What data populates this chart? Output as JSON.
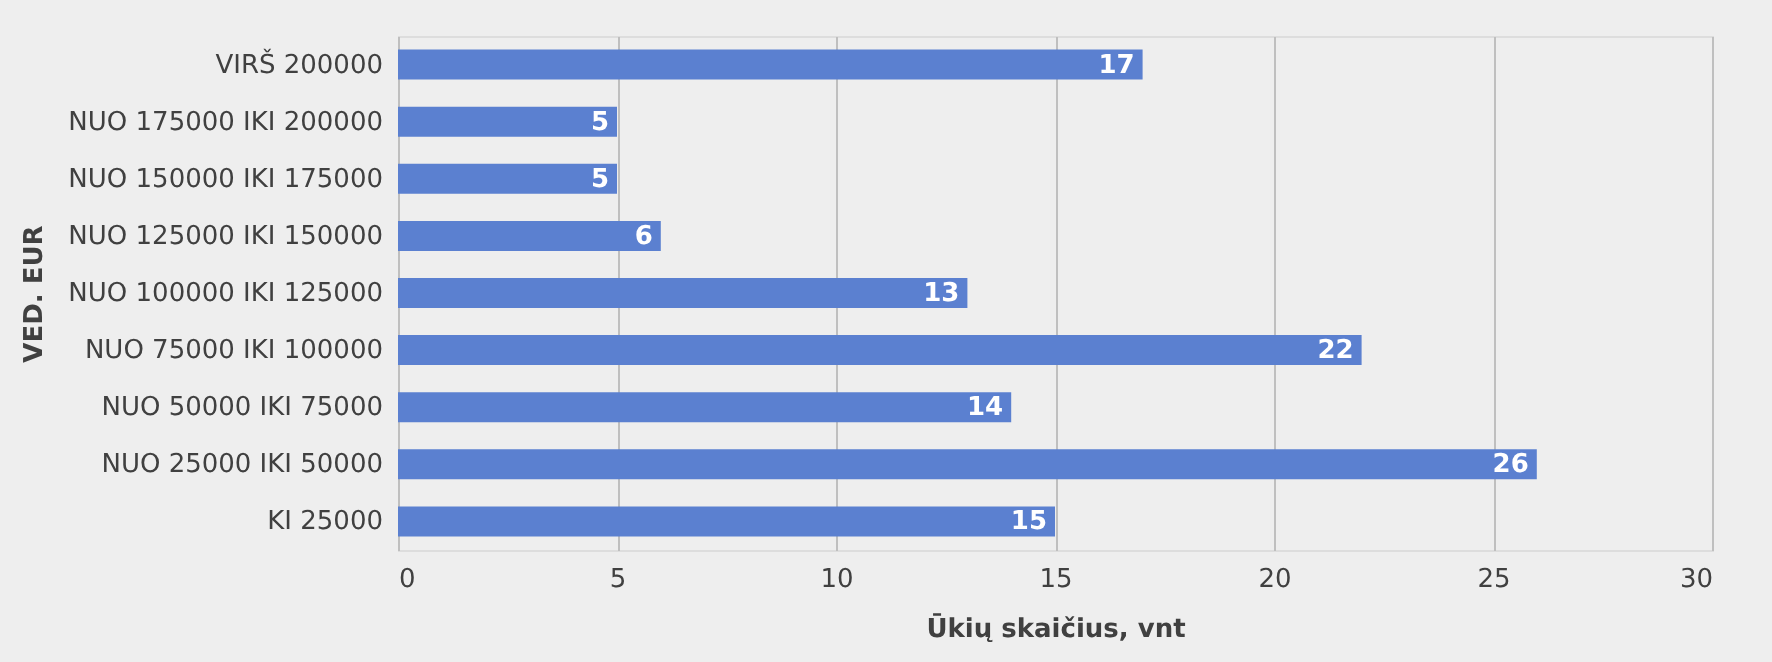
{
  "chart_data": {
    "type": "bar",
    "orientation": "horizontal",
    "xlabel": "Ūkių skaičius, vnt",
    "ylabel": "VED. EUR",
    "categories": [
      "VIRŠ 200000",
      "NUO 175000 IKI 200000",
      "NUO 150000 IKI 175000",
      "NUO 125000 IKI 150000",
      "NUO 100000 IKI 125000",
      "NUO 75000 IKI 100000",
      "NUO 50000 IKI 75000",
      "NUO 25000 IKI 50000",
      "KI 25000"
    ],
    "values": [
      17,
      5,
      5,
      6,
      13,
      22,
      14,
      26,
      15
    ],
    "color": "#5b80d0",
    "xlim": [
      0,
      30
    ],
    "xticks": [
      0,
      5,
      10,
      15,
      20,
      25,
      30
    ],
    "grid": "x",
    "data_labels": true
  }
}
